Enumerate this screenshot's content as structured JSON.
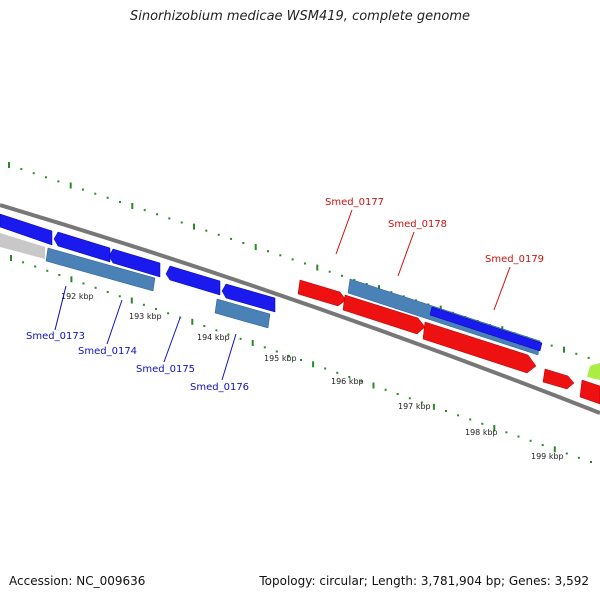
{
  "title": "Sinorhizobium medicae WSM419, complete genome",
  "footer": {
    "accession": "Accession: NC_009636",
    "summary": "Topology: circular; Length: 3,781,904 bp; Genes: 3,592"
  },
  "colors": {
    "forward_strand_gene": "#ee1111",
    "reverse_strand_gene": "#1111ee",
    "cds_bar": "#4a82b8",
    "backbone": "#777777",
    "tick": "#2a8a2a",
    "forward_label": "#cc1111",
    "reverse_label": "#1111bb",
    "other_feature": "#aaee44"
  },
  "ruler": {
    "unit": "kbp",
    "ticks": [
      {
        "kbp": 192,
        "label": "192 kbp"
      },
      {
        "kbp": 193,
        "label": "193 kbp"
      },
      {
        "kbp": 194,
        "label": "194 kbp"
      },
      {
        "kbp": 195,
        "label": "195 kbp"
      },
      {
        "kbp": 196,
        "label": "196 kbp"
      },
      {
        "kbp": 197,
        "label": "197 kbp"
      },
      {
        "kbp": 198,
        "label": "198 kbp"
      },
      {
        "kbp": 199,
        "label": "199 kbp"
      }
    ]
  },
  "genes": [
    {
      "name": "Smed_0173",
      "strand": "reverse"
    },
    {
      "name": "Smed_0174",
      "strand": "reverse"
    },
    {
      "name": "Smed_0175",
      "strand": "reverse"
    },
    {
      "name": "Smed_0176",
      "strand": "reverse"
    },
    {
      "name": "Smed_0177",
      "strand": "forward"
    },
    {
      "name": "Smed_0178",
      "strand": "forward"
    },
    {
      "name": "Smed_0179",
      "strand": "forward"
    }
  ]
}
